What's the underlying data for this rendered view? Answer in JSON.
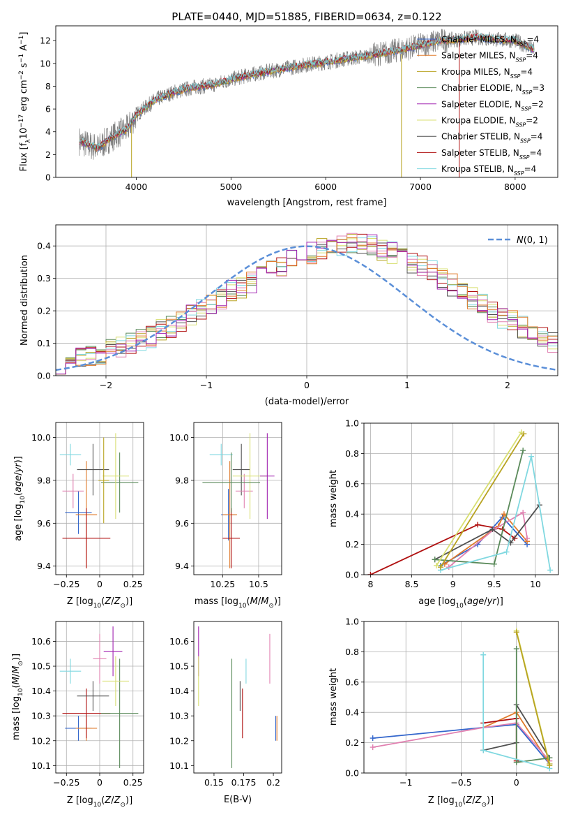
{
  "figure_title": "PLATE=0440, MJD=51885, FIBERID=0634, z=0.122",
  "model_colors": [
    "#3366cc",
    "#e07b2b",
    "#b8a321",
    "#5a8a5a",
    "#a020b0",
    "#d8df70",
    "#505050",
    "#b01010",
    "#80d8e0",
    "#e080b0"
  ],
  "chart_data": [
    {
      "id": "spectrum",
      "type": "line",
      "title": "PLATE=0440, MJD=51885, FIBERID=0634, z=0.122",
      "xlabel": "wavelength [Angstrom, rest frame]",
      "ylabel": "Flux [f_λ 10^-17 erg cm^-2 s^-1 A^-1]",
      "xlim": [
        3150,
        8450
      ],
      "ylim": [
        0,
        13.3
      ],
      "xticks": [
        4000,
        5000,
        6000,
        7000,
        8000
      ],
      "yticks": [
        0,
        2,
        4,
        6,
        8,
        10,
        12
      ],
      "grid": false,
      "legend_position": "top-right",
      "data_trend": {
        "x": [
          3400,
          3500,
          3600,
          3700,
          3800,
          3900,
          4000,
          4200,
          4400,
          4600,
          4800,
          5000,
          5200,
          5400,
          5600,
          5800,
          6000,
          6200,
          6400,
          6600,
          6800,
          7000,
          7200,
          7400,
          7600,
          7800,
          8000,
          8100,
          8200
        ],
        "y": [
          3.2,
          2.8,
          2.6,
          3.3,
          3.8,
          4.2,
          5.5,
          6.8,
          7.5,
          7.9,
          8.1,
          8.6,
          9.0,
          9.3,
          9.6,
          9.9,
          10.1,
          10.4,
          10.6,
          10.9,
          11.2,
          11.6,
          12.0,
          12.1,
          12.3,
          12.1,
          12.0,
          11.6,
          11.2
        ]
      },
      "series": [
        {
          "name": "Chabrier MILES, N_SSP=4",
          "color": "#3366cc"
        },
        {
          "name": "Salpeter MILES, N_SSP=4",
          "color": "#e07b2b"
        },
        {
          "name": "Kroupa MILES, N_SSP=4",
          "color": "#b8a321"
        },
        {
          "name": "Chabrier ELODIE, N_SSP=3",
          "color": "#5a8a5a"
        },
        {
          "name": "Salpeter ELODIE, N_SSP=2",
          "color": "#a020b0"
        },
        {
          "name": "Kroupa ELODIE, N_SSP=2",
          "color": "#d8df70"
        },
        {
          "name": "Chabrier STELIB, N_SSP=4",
          "color": "#505050"
        },
        {
          "name": "Salpeter STELIB, N_SSP=4",
          "color": "#b01010"
        },
        {
          "name": "Kroupa STELIB, N_SSP=4",
          "color": "#80d8e0"
        }
      ]
    },
    {
      "id": "residual-hist",
      "type": "line",
      "xlabel": "(data-model)/error",
      "ylabel": "Normed distribution",
      "xlim": [
        -2.5,
        2.5
      ],
      "ylim": [
        0,
        0.465
      ],
      "xticks": [
        -2,
        -1,
        0,
        1,
        2
      ],
      "yticks": [
        0.0,
        0.1,
        0.2,
        0.3,
        0.4
      ],
      "grid": true,
      "legend_position": "top-right",
      "legend": [
        "N(0,1)"
      ],
      "bin_edges_from": -2.5,
      "bin_width": 0.1,
      "histogram_approx": [
        0.04,
        0.05,
        0.06,
        0.06,
        0.07,
        0.08,
        0.09,
        0.1,
        0.11,
        0.12,
        0.14,
        0.15,
        0.17,
        0.19,
        0.2,
        0.22,
        0.24,
        0.26,
        0.27,
        0.29,
        0.31,
        0.33,
        0.34,
        0.36,
        0.37,
        0.38,
        0.39,
        0.4,
        0.4,
        0.41,
        0.41,
        0.4,
        0.39,
        0.38,
        0.37,
        0.35,
        0.34,
        0.32,
        0.3,
        0.28,
        0.26,
        0.24,
        0.22,
        0.2,
        0.18,
        0.17,
        0.15,
        0.13,
        0.12,
        0.1
      ]
    },
    {
      "id": "age-vs-Z",
      "type": "scatter",
      "xlabel": "Z [log10(Z/Z☉)]",
      "ylabel": "age [log10(age/yr)]",
      "xlim": [
        -0.33,
        0.33
      ],
      "ylim": [
        9.36,
        10.07
      ],
      "xticks": [
        -0.25,
        0.0,
        0.25
      ],
      "ytick_values": [
        9.4,
        9.6,
        9.8,
        10.0
      ],
      "grid": true,
      "points": [
        {
          "x": -0.22,
          "y": 9.92,
          "xerr": 0.08,
          "yerr": 0.05,
          "ci": 8
        },
        {
          "x": -0.16,
          "y": 9.65,
          "xerr": 0.1,
          "yerr": 0.1,
          "ci": 0
        },
        {
          "x": -0.2,
          "y": 9.75,
          "xerr": 0.08,
          "yerr": 0.08,
          "ci": 9
        },
        {
          "x": -0.1,
          "y": 9.64,
          "xerr": 0.08,
          "yerr": 0.25,
          "ci": 1
        },
        {
          "x": -0.1,
          "y": 9.53,
          "xerr": 0.18,
          "yerr": 0.14,
          "ci": 7
        },
        {
          "x": -0.05,
          "y": 9.85,
          "xerr": 0.12,
          "yerr": 0.12,
          "ci": 6
        },
        {
          "x": 0.15,
          "y": 9.79,
          "xerr": 0.14,
          "yerr": 0.14,
          "ci": 3
        },
        {
          "x": 0.12,
          "y": 9.82,
          "xerr": 0.1,
          "yerr": 0.2,
          "ci": 5
        },
        {
          "x": 0.03,
          "y": 9.8,
          "xerr": 0.04,
          "yerr": 0.2,
          "ci": 2
        }
      ]
    },
    {
      "id": "age-vs-mass",
      "type": "scatter",
      "xlabel": "mass [log10(M/M☉)]",
      "xlim": [
        10.05,
        10.66
      ],
      "ylim": [
        9.36,
        10.07
      ],
      "xticks": [
        10.25,
        10.5
      ],
      "ytick_values": [
        9.4,
        9.6,
        9.8,
        10.0
      ],
      "grid": true,
      "points": [
        {
          "x": 10.24,
          "y": 9.92,
          "xerr": 0.08,
          "yerr": 0.05,
          "ci": 8
        },
        {
          "x": 10.29,
          "y": 9.64,
          "xerr": 0.05,
          "yerr": 0.12,
          "ci": 0
        },
        {
          "x": 10.3,
          "y": 9.64,
          "xerr": 0.05,
          "yerr": 0.25,
          "ci": 1
        },
        {
          "x": 10.31,
          "y": 9.53,
          "xerr": 0.06,
          "yerr": 0.14,
          "ci": 7
        },
        {
          "x": 10.38,
          "y": 9.85,
          "xerr": 0.06,
          "yerr": 0.12,
          "ci": 6
        },
        {
          "x": 10.4,
          "y": 9.75,
          "xerr": 0.06,
          "yerr": 0.08,
          "ci": 9
        },
        {
          "x": 10.44,
          "y": 9.82,
          "xerr": 0.12,
          "yerr": 0.2,
          "ci": 5
        },
        {
          "x": 10.56,
          "y": 9.82,
          "xerr": 0.05,
          "yerr": 0.2,
          "ci": 4
        },
        {
          "x": 10.31,
          "y": 9.79,
          "xerr": 0.2,
          "yerr": 0.14,
          "ci": 3
        }
      ]
    },
    {
      "id": "mass-weight-vs-age",
      "type": "line",
      "xlabel": "age [log10(age/yr)]",
      "ylabel": "mass weight",
      "xlim": [
        7.92,
        10.28
      ],
      "ylim": [
        0,
        1
      ],
      "xticks": [
        8.0,
        8.5,
        9.0,
        9.5,
        10.0
      ],
      "ytick_values": [
        0.0,
        0.2,
        0.4,
        0.6,
        0.8,
        1.0
      ],
      "grid": true,
      "series": [
        {
          "ci": 7,
          "x": [
            8.0,
            9.3,
            9.6,
            9.75
          ],
          "y": [
            0.0,
            0.33,
            0.3,
            0.24
          ]
        },
        {
          "ci": 0,
          "x": [
            8.85,
            9.3,
            9.6,
            9.9
          ],
          "y": [
            0.06,
            0.2,
            0.38,
            0.2
          ]
        },
        {
          "ci": 1,
          "x": [
            8.9,
            9.55,
            9.62,
            9.9
          ],
          "y": [
            0.07,
            0.32,
            0.4,
            0.22
          ]
        },
        {
          "ci": 9,
          "x": [
            8.95,
            9.5,
            9.85,
            9.9
          ],
          "y": [
            0.05,
            0.3,
            0.41,
            0.24
          ]
        },
        {
          "ci": 6,
          "x": [
            8.78,
            9.48,
            9.7,
            10.05
          ],
          "y": [
            0.1,
            0.3,
            0.21,
            0.46
          ]
        },
        {
          "ci": 3,
          "x": [
            8.78,
            9.5,
            9.85
          ],
          "y": [
            0.1,
            0.07,
            0.82
          ]
        },
        {
          "ci": 8,
          "x": [
            8.85,
            9.65,
            9.95,
            10.18
          ],
          "y": [
            0.03,
            0.15,
            0.78,
            0.03
          ]
        },
        {
          "ci": 5,
          "x": [
            8.8,
            9.83
          ],
          "y": [
            0.06,
            0.94
          ]
        },
        {
          "ci": 2,
          "x": [
            8.85,
            9.86
          ],
          "y": [
            0.05,
            0.93
          ]
        }
      ]
    },
    {
      "id": "mass-vs-Z",
      "type": "scatter",
      "xlabel": "Z [log10(Z/Z☉)]",
      "ylabel": "mass [log10(M/M☉)]",
      "xlim": [
        -0.33,
        0.33
      ],
      "ylim": [
        10.07,
        10.68
      ],
      "xticks": [
        -0.25,
        0.0,
        0.25
      ],
      "ytick_values": [
        10.1,
        10.2,
        10.3,
        10.4,
        10.5,
        10.6
      ],
      "grid": true,
      "points": [
        {
          "x": -0.22,
          "y": 10.48,
          "xerr": 0.08,
          "yerr": 0.05,
          "ci": 8
        },
        {
          "x": -0.16,
          "y": 10.25,
          "xerr": 0.1,
          "yerr": 0.05,
          "ci": 0
        },
        {
          "x": -0.1,
          "y": 10.25,
          "xerr": 0.08,
          "yerr": 0.05,
          "ci": 1
        },
        {
          "x": -0.1,
          "y": 10.31,
          "xerr": 0.18,
          "yerr": 0.1,
          "ci": 7
        },
        {
          "x": -0.05,
          "y": 10.38,
          "xerr": 0.12,
          "yerr": 0.06,
          "ci": 6
        },
        {
          "x": 0.15,
          "y": 10.31,
          "xerr": 0.14,
          "yerr": 0.22,
          "ci": 3
        },
        {
          "x": 0.12,
          "y": 10.44,
          "xerr": 0.1,
          "yerr": 0.1,
          "ci": 5
        },
        {
          "x": 0.1,
          "y": 10.56,
          "xerr": 0.07,
          "yerr": 0.1,
          "ci": 4
        },
        {
          "x": 0.0,
          "y": 10.53,
          "xerr": 0.05,
          "yerr": 0.1,
          "ci": 9
        }
      ]
    },
    {
      "id": "mass-vs-ebv",
      "type": "scatter",
      "xlabel": "E(B-V)",
      "xlim": [
        0.133,
        0.207
      ],
      "ylim": [
        10.07,
        10.68
      ],
      "xticks": [
        0.15,
        0.175,
        0.2
      ],
      "ytick_values": [
        10.1,
        10.2,
        10.3,
        10.4,
        10.5,
        10.6
      ],
      "grid": false,
      "points": [
        {
          "x": 0.137,
          "y": 10.56,
          "yerr": 0.1,
          "ci": 4
        },
        {
          "x": 0.137,
          "y": 10.44,
          "yerr": 0.1,
          "ci": 5
        },
        {
          "x": 0.165,
          "y": 10.31,
          "yerr": 0.22,
          "ci": 3
        },
        {
          "x": 0.172,
          "y": 10.38,
          "yerr": 0.06,
          "ci": 6
        },
        {
          "x": 0.174,
          "y": 10.31,
          "yerr": 0.1,
          "ci": 7
        },
        {
          "x": 0.177,
          "y": 10.48,
          "yerr": 0.05,
          "ci": 8
        },
        {
          "x": 0.197,
          "y": 10.53,
          "yerr": 0.1,
          "ci": 9
        },
        {
          "x": 0.202,
          "y": 10.25,
          "yerr": 0.05,
          "ci": 0
        },
        {
          "x": 0.203,
          "y": 10.25,
          "yerr": 0.05,
          "ci": 1
        }
      ]
    },
    {
      "id": "mass-weight-vs-Z",
      "type": "line",
      "xlabel": "Z [log10(Z/Z☉)]",
      "ylabel": "mass weight",
      "xlim": [
        -1.38,
        0.38
      ],
      "ylim": [
        0,
        1
      ],
      "xticks": [
        -1.0,
        -0.5,
        0.0
      ],
      "ytick_values": [
        0.0,
        0.2,
        0.4,
        0.6,
        0.8,
        1.0
      ],
      "grid": true,
      "series": [
        {
          "ci": 0,
          "x": [
            -1.3,
            -0.3,
            0.0,
            0.3
          ],
          "y": [
            0.23,
            0.3,
            0.32,
            0.06
          ]
        },
        {
          "ci": 1,
          "x": [
            -0.3,
            0.0,
            0.3
          ],
          "y": [
            0.3,
            0.4,
            0.06
          ]
        },
        {
          "ci": 9,
          "x": [
            -1.3,
            -0.3,
            0.0,
            0.3
          ],
          "y": [
            0.17,
            0.3,
            0.33,
            0.08
          ]
        },
        {
          "ci": 7,
          "x": [
            -0.3,
            0.0,
            0.0
          ],
          "y": [
            0.33,
            0.36,
            0.08
          ]
        },
        {
          "ci": 6,
          "x": [
            -0.3,
            0.0,
            0.0,
            0.3
          ],
          "y": [
            0.15,
            0.2,
            0.45,
            0.1
          ]
        },
        {
          "ci": 3,
          "x": [
            0.0,
            0.0,
            0.3
          ],
          "y": [
            0.82,
            0.07,
            0.1
          ]
        },
        {
          "ci": 8,
          "x": [
            -0.3,
            -0.3,
            0.3
          ],
          "y": [
            0.78,
            0.15,
            0.03
          ]
        },
        {
          "ci": 5,
          "x": [
            0.0,
            0.3
          ],
          "y": [
            0.94,
            0.06
          ]
        },
        {
          "ci": 2,
          "x": [
            0.0,
            0.3
          ],
          "y": [
            0.93,
            0.05
          ]
        }
      ]
    }
  ]
}
